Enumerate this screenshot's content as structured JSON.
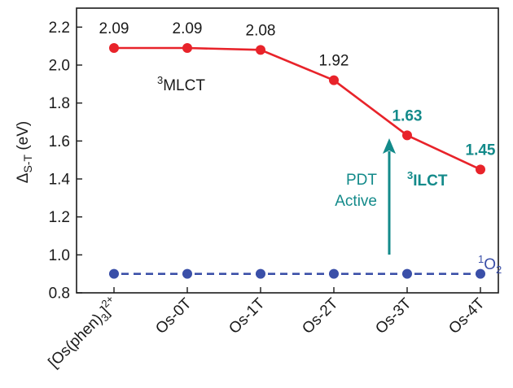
{
  "chart_data": {
    "type": "line",
    "categories": [
      "[Os(phen)3]2+",
      "Os-0T",
      "Os-1T",
      "Os-2T",
      "Os-3T",
      "Os-4T"
    ],
    "category_labels": [
      {
        "parts": [
          {
            "t": "[Os(phen)"
          },
          {
            "t": "3",
            "s": "sub"
          },
          {
            "t": "]"
          },
          {
            "t": "2+",
            "s": "sup"
          }
        ]
      },
      {
        "parts": [
          {
            "t": "Os-0T"
          }
        ]
      },
      {
        "parts": [
          {
            "t": "Os-1T"
          }
        ]
      },
      {
        "parts": [
          {
            "t": "Os-2T"
          }
        ]
      },
      {
        "parts": [
          {
            "t": "Os-3T"
          }
        ]
      },
      {
        "parts": [
          {
            "t": "Os-4T"
          }
        ]
      }
    ],
    "ylabel": {
      "main": "Δ",
      "sub": "S-T",
      "rest": " (eV)"
    },
    "ylim": [
      0.8,
      2.3
    ],
    "yticks": [
      "0.8",
      "1.0",
      "1.2",
      "1.4",
      "1.6",
      "1.8",
      "2.0",
      "2.2"
    ],
    "series": [
      {
        "values": [
          2.09,
          2.09,
          2.08,
          1.92,
          1.63,
          1.45
        ],
        "labels": [
          "2.09",
          "2.09",
          "2.08",
          "1.92",
          "1.63",
          "1.45"
        ],
        "label_colors": [
          "#1a1a1a",
          "#1a1a1a",
          "#1a1a1a",
          "#1a1a1a",
          "#138a8a",
          "#138a8a"
        ],
        "label_bold": [
          false,
          false,
          false,
          false,
          true,
          true
        ],
        "color": "#e8232a",
        "style": "solid"
      },
      {
        "values": [
          0.9,
          0.9,
          0.9,
          0.9,
          0.9,
          0.9
        ],
        "color": "#3a4fa8",
        "style": "dashed"
      }
    ],
    "annotations": {
      "mlct": {
        "sup": "3",
        "text": "MLCT",
        "color": "#1a1a1a"
      },
      "ilct": {
        "sup": "3",
        "text": "ILCT",
        "color": "#138a8a"
      },
      "pdt_line1": "PDT",
      "pdt_line2": "Active",
      "pdt_color": "#138a8a",
      "o2": {
        "sup": "1",
        "text": "O",
        "sub": "2",
        "color": "#3a4fa8"
      }
    },
    "grid": false,
    "legend": "none"
  }
}
